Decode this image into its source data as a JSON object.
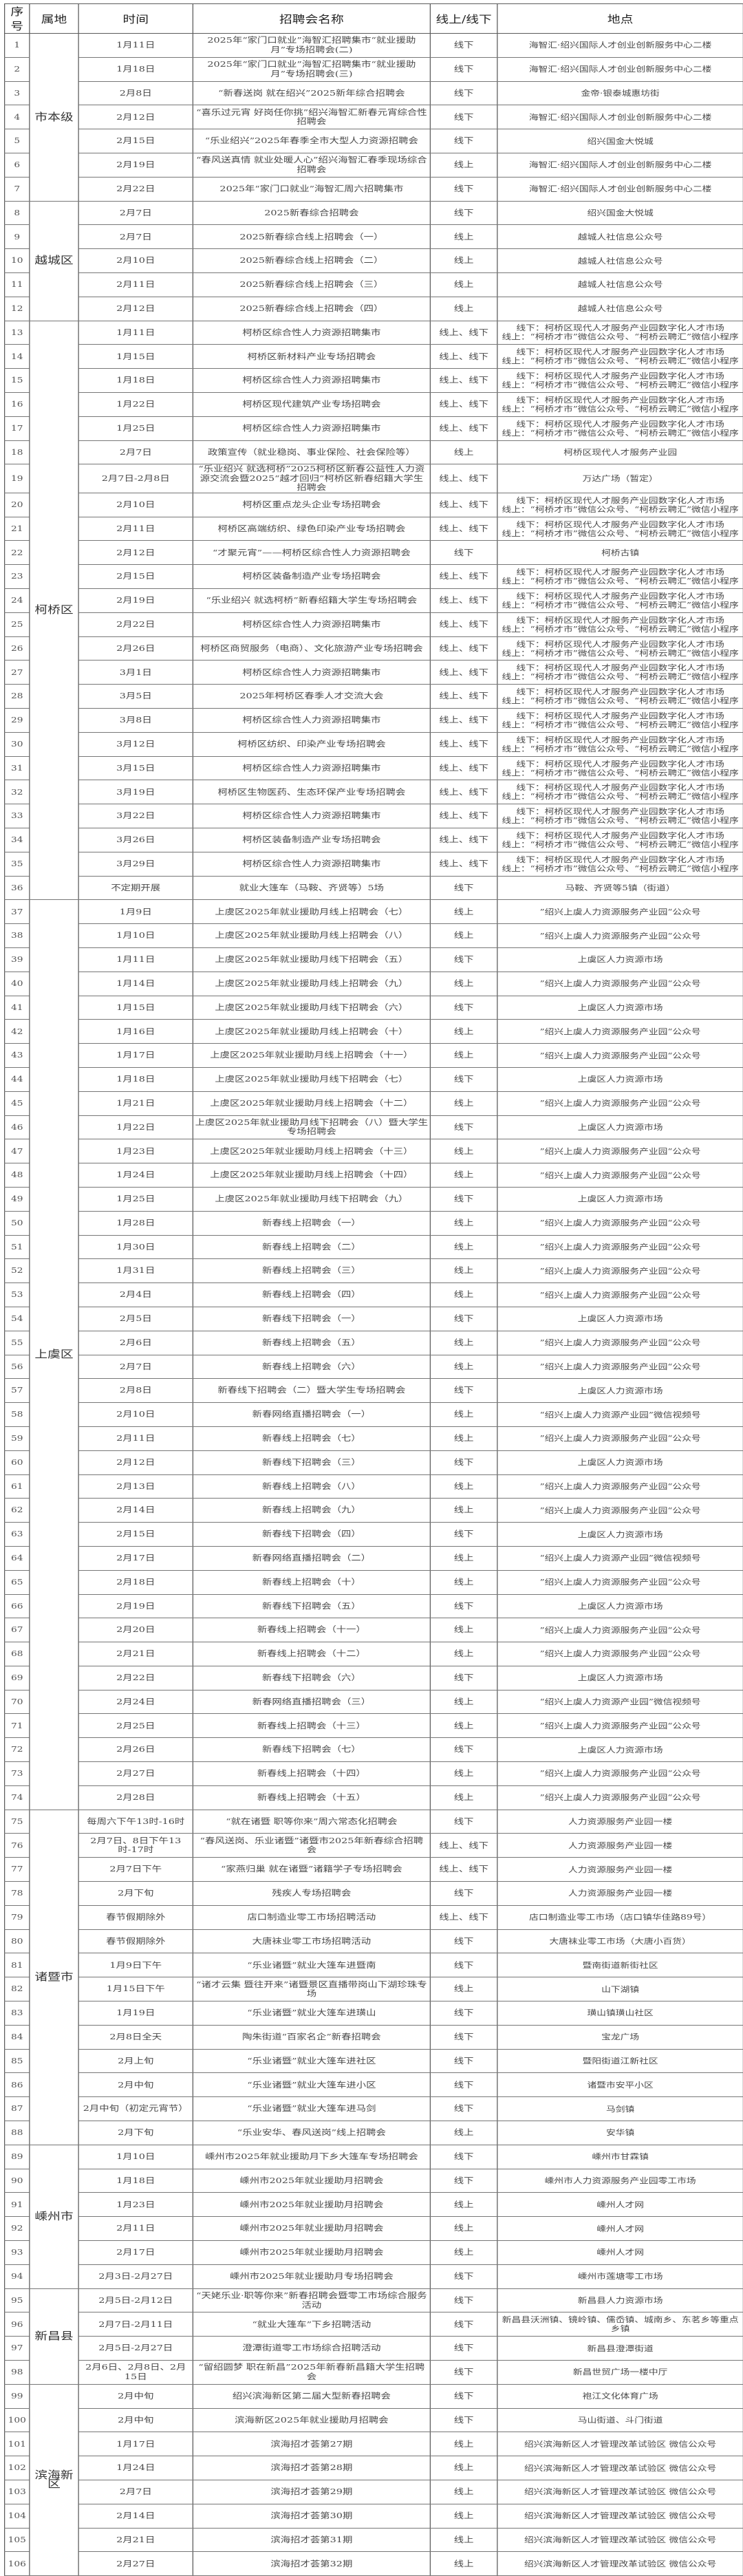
{
  "header": {
    "seq": "序号",
    "region": "属地",
    "time": "时间",
    "name": "招聘会名称",
    "mode": "线上/线下",
    "place": "地点"
  },
  "groups": [
    {
      "region": "市本级",
      "rows": [
        [
          "1",
          "1月11日",
          "2025年“家门口就业”海智汇招聘集市“就业援助月”专场招聘会(二)",
          "线下",
          "海智汇·绍兴国际人才创业创新服务中心二楼"
        ],
        [
          "2",
          "1月18日",
          "2025年“家门口就业”海智汇招聘集市“就业援助月”专场招聘会(三)",
          "线下",
          "海智汇·绍兴国际人才创业创新服务中心二楼"
        ],
        [
          "3",
          "2月8日",
          "“新春送岗 就在绍兴”2025新年综合招聘会",
          "线下",
          "金帝·银泰城惠坊街"
        ],
        [
          "4",
          "2月12日",
          "“喜乐过元宵 好岗任你挑”绍兴海智汇新春元宵综合性招聘会",
          "线下",
          "海智汇·绍兴国际人才创业创新服务中心二楼"
        ],
        [
          "5",
          "2月15日",
          "“乐业绍兴”2025年春季全市大型人力资源招聘会",
          "线下",
          "绍兴国金大悦城"
        ],
        [
          "6",
          "2月19日",
          "“春风送真情 就业处暖人心”绍兴海智汇春季现场综合招聘会",
          "线上",
          "海智汇·绍兴国际人才创业创新服务中心二楼"
        ],
        [
          "7",
          "2月22日",
          "2025年“家门口就业”海智汇周六招聘集市",
          "线下",
          "海智汇·绍兴国际人才创业创新服务中心二楼"
        ]
      ]
    },
    {
      "region": "越城区",
      "rows": [
        [
          "8",
          "2月7日",
          "2025新春综合招聘会",
          "线下",
          "绍兴国金大悦城"
        ],
        [
          "9",
          "2月7日",
          "2025新春综合线上招聘会（一）",
          "线上",
          "越城人社信息公众号"
        ],
        [
          "10",
          "2月10日",
          "2025新春综合线上招聘会（二）",
          "线上",
          "越城人社信息公众号"
        ],
        [
          "11",
          "2月11日",
          "2025新春综合线上招聘会（三）",
          "线上",
          "越城人社信息公众号"
        ],
        [
          "12",
          "2月12日",
          "2025新春综合线上招聘会（四）",
          "线上",
          "越城人社信息公众号"
        ]
      ]
    },
    {
      "region": "柯桥区",
      "rows": [
        [
          "13",
          "1月11日",
          "柯桥区综合性人力资源招聘集市",
          "线上、线下",
          "线下：柯桥区现代人才服务产业园数字化人才市场\n线上：“柯桥才市”微信公众号、“柯桥云聘汇”微信小程序"
        ],
        [
          "14",
          "1月15日",
          "柯桥区新材料产业专场招聘会",
          "线上、线下",
          "线下：柯桥区现代人才服务产业园数字化人才市场\n线上：“柯桥才市”微信公众号、“柯桥云聘汇”微信小程序"
        ],
        [
          "15",
          "1月18日",
          "柯桥区综合性人力资源招聘集市",
          "线上、线下",
          "线下：柯桥区现代人才服务产业园数字化人才市场\n线上：“柯桥才市”微信公众号、“柯桥云聘汇”微信小程序"
        ],
        [
          "16",
          "1月22日",
          "柯桥区现代建筑产业专场招聘会",
          "线上、线下",
          "线下：柯桥区现代人才服务产业园数字化人才市场\n线上：“柯桥才市”微信公众号、“柯桥云聘汇”微信小程序"
        ],
        [
          "17",
          "1月25日",
          "柯桥区综合性人力资源招聘集市",
          "线上、线下",
          "线下：柯桥区现代人才服务产业园数字化人才市场\n线上：“柯桥才市”微信公众号、“柯桥云聘汇”微信小程序"
        ],
        [
          "18",
          "2月7日",
          "政策宣传（就业稳岗、事业保险、社会保险等）",
          "线上",
          "柯桥区现代人才服务产业园"
        ],
        [
          "19",
          "2月7日-2月8日",
          "“乐业绍兴 就选柯桥”2025柯桥区新春公益性人力资源交流会暨2025“越才回归”柯桥区新春绍籍大学生招聘会",
          "线上、线下",
          "万达广场（暂定）"
        ],
        [
          "20",
          "2月10日",
          "柯桥区重点龙头企业专场招聘会",
          "线上、线下",
          "线下：柯桥区现代人才服务产业园数字化人才市场\n线上：“柯桥才市”微信公众号、“柯桥云聘汇”微信小程序"
        ],
        [
          "21",
          "2月11日",
          "柯桥区高端纺织、绿色印染产业专场招聘会",
          "线上、线下",
          "线下：柯桥区现代人才服务产业园数字化人才市场\n线上：“柯桥才市”微信公众号、“柯桥云聘汇”微信小程序"
        ],
        [
          "22",
          "2月12日",
          "“才聚元宵”——柯桥区综合性人力资源招聘会",
          "线下",
          "柯桥古镇"
        ],
        [
          "23",
          "2月15日",
          "柯桥区装备制造产业专场招聘会",
          "线上、线下",
          "线下：柯桥区现代人才服务产业园数字化人才市场\n线上：“柯桥才市”微信公众号、“柯桥云聘汇”微信小程序"
        ],
        [
          "24",
          "2月19日",
          "“乐业绍兴 就选柯桥”新春绍籍大学生专场招聘会",
          "线上、线下",
          "线下：柯桥区现代人才服务产业园数字化人才市场\n线上：“柯桥才市”微信公众号、“柯桥云聘汇”微信小程序"
        ],
        [
          "25",
          "2月22日",
          "柯桥区综合性人力资源招聘集市",
          "线上、线下",
          "线下：柯桥区现代人才服务产业园数字化人才市场\n线上：“柯桥才市”微信公众号、“柯桥云聘汇”微信小程序"
        ],
        [
          "26",
          "2月26日",
          "柯桥区商贸服务（电商）、文化旅游产业专场招聘会",
          "线上、线下",
          "线下：柯桥区现代人才服务产业园数字化人才市场\n线上：“柯桥才市”微信公众号、“柯桥云聘汇”微信小程序"
        ],
        [
          "27",
          "3月1日",
          "柯桥区综合性人力资源招聘集市",
          "线上、线下",
          "线下：柯桥区现代人才服务产业园数字化人才市场\n线上：“柯桥才市”微信公众号、“柯桥云聘汇”微信小程序"
        ],
        [
          "28",
          "3月5日",
          "2025年柯桥区春季人才交流大会",
          "线上、线下",
          "线下：柯桥区现代人才服务产业园数字化人才市场\n线上：“柯桥才市”微信公众号、“柯桥云聘汇”微信小程序"
        ],
        [
          "29",
          "3月8日",
          "柯桥区综合性人力资源招聘集市",
          "线上、线下",
          "线下：柯桥区现代人才服务产业园数字化人才市场\n线上：“柯桥才市”微信公众号、“柯桥云聘汇”微信小程序"
        ],
        [
          "30",
          "3月12日",
          "柯桥区纺织、印染产业专场招聘会",
          "线上、线下",
          "线下：柯桥区现代人才服务产业园数字化人才市场\n线上：“柯桥才市”微信公众号、“柯桥云聘汇”微信小程序"
        ],
        [
          "31",
          "3月15日",
          "柯桥区综合性人力资源招聘集市",
          "线上、线下",
          "线下：柯桥区现代人才服务产业园数字化人才市场\n线上：“柯桥才市”微信公众号、“柯桥云聘汇”微信小程序"
        ],
        [
          "32",
          "3月19日",
          "柯桥区生物医药、生态环保产业专场招聘会",
          "线上、线下",
          "线下：柯桥区现代人才服务产业园数字化人才市场\n线上：“柯桥才市”微信公众号、“柯桥云聘汇”微信小程序"
        ],
        [
          "33",
          "3月22日",
          "柯桥区综合性人力资源招聘集市",
          "线上、线下",
          "线下：柯桥区现代人才服务产业园数字化人才市场\n线上：“柯桥才市”微信公众号、“柯桥云聘汇”微信小程序"
        ],
        [
          "34",
          "3月26日",
          "柯桥区装备制造产业专场招聘会",
          "线上、线下",
          "线下：柯桥区现代人才服务产业园数字化人才市场\n线上：“柯桥才市”微信公众号、“柯桥云聘汇”微信小程序"
        ],
        [
          "35",
          "3月29日",
          "柯桥区综合性人力资源招聘集市",
          "线上、线下",
          "线下：柯桥区现代人才服务产业园数字化人才市场\n线上：“柯桥才市”微信公众号、“柯桥云聘汇”微信小程序"
        ],
        [
          "36",
          "不定期开展",
          "就业大篷车（马鞍、齐贤等）5场",
          "线下",
          "马鞍、齐贤等5镇（街道）"
        ]
      ]
    },
    {
      "region": "上虞区",
      "rows": [
        [
          "37",
          "1月9日",
          "上虞区2025年就业援助月线上招聘会（七）",
          "线上",
          "”绍兴上虞人力资源服务产业园“公众号"
        ],
        [
          "38",
          "1月10日",
          "上虞区2025年就业援助月线上招聘会（八）",
          "线上",
          "”绍兴上虞人力资源服务产业园“公众号"
        ],
        [
          "39",
          "1月11日",
          "上虞区2025年就业援助月线下招聘会（五）",
          "线下",
          "上虞区人力资源市场"
        ],
        [
          "40",
          "1月14日",
          "上虞区2025年就业援助月线上招聘会（九）",
          "线上",
          "”绍兴上虞人力资源服务产业园“公众号"
        ],
        [
          "41",
          "1月15日",
          "上虞区2025年就业援助月线下招聘会（六）",
          "线下",
          "上虞区人力资源市场"
        ],
        [
          "42",
          "1月16日",
          "上虞区2025年就业援助月线上招聘会（十）",
          "线上",
          "”绍兴上虞人力资源服务产业园“公众号"
        ],
        [
          "43",
          "1月17日",
          "上虞区2025年就业援助月线上招聘会（十一）",
          "线上",
          "”绍兴上虞人力资源服务产业园“公众号"
        ],
        [
          "44",
          "1月18日",
          "上虞区2025年就业援助月线下招聘会（七）",
          "线下",
          "上虞区人力资源市场"
        ],
        [
          "45",
          "1月21日",
          "上虞区2025年就业援助月线上招聘会（十二）",
          "线上",
          "”绍兴上虞人力资源服务产业园“公众号"
        ],
        [
          "46",
          "1月22日",
          "上虞区2025年就业援助月线下招聘会（八）暨大学生专场招聘会",
          "线下",
          "上虞区人力资源市场"
        ],
        [
          "47",
          "1月23日",
          "上虞区2025年就业援助月线上招聘会（十三）",
          "线上",
          "”绍兴上虞人力资源服务产业园“公众号"
        ],
        [
          "48",
          "1月24日",
          "上虞区2025年就业援助月线上招聘会（十四）",
          "线上",
          "”绍兴上虞人力资源服务产业园“公众号"
        ],
        [
          "49",
          "1月25日",
          "上虞区2025年就业援助月线下招聘会（九）",
          "线下",
          "上虞区人力资源市场"
        ],
        [
          "50",
          "1月28日",
          "新春线上招聘会（一）",
          "线上",
          "”绍兴上虞人力资源服务产业园“公众号"
        ],
        [
          "51",
          "1月30日",
          "新春线上招聘会（二）",
          "线上",
          "”绍兴上虞人力资源服务产业园“公众号"
        ],
        [
          "52",
          "1月31日",
          "新春线上招聘会（三）",
          "线上",
          "”绍兴上虞人力资源服务产业园“公众号"
        ],
        [
          "53",
          "2月4日",
          "新春线上招聘会（四）",
          "线上",
          "”绍兴上虞人力资源服务产业园“公众号"
        ],
        [
          "54",
          "2月5日",
          "新春线下招聘会（一）",
          "线下",
          "上虞区人力资源市场"
        ],
        [
          "55",
          "2月6日",
          "新春线上招聘会（五）",
          "线上",
          "”绍兴上虞人力资源服务产业园“公众号"
        ],
        [
          "56",
          "2月7日",
          "新春线上招聘会（六）",
          "线上",
          "”绍兴上虞人力资源服务产业园“公众号"
        ],
        [
          "57",
          "2月8日",
          "新春线下招聘会（二）暨大学生专场招聘会",
          "线下",
          "上虞区人力资源市场"
        ],
        [
          "58",
          "2月10日",
          "新春网络直播招聘会（一）",
          "线上",
          "“绍兴上虞人力资源产业园”微信视频号"
        ],
        [
          "59",
          "2月11日",
          "新春线上招聘会（七）",
          "线上",
          "”绍兴上虞人力资源服务产业园“公众号"
        ],
        [
          "60",
          "2月12日",
          "新春线下招聘会（三）",
          "线下",
          "上虞区人力资源市场"
        ],
        [
          "61",
          "2月13日",
          "新春线上招聘会（八）",
          "线上",
          "”绍兴上虞人力资源服务产业园“公众号"
        ],
        [
          "62",
          "2月14日",
          "新春线上招聘会（九）",
          "线上",
          "”绍兴上虞人力资源服务产业园“公众号"
        ],
        [
          "63",
          "2月15日",
          "新春线下招聘会（四）",
          "线下",
          "上虞区人力资源市场"
        ],
        [
          "64",
          "2月17日",
          "新春网络直播招聘会（二）",
          "线上",
          "“绍兴上虞人力资源产业园”微信视频号"
        ],
        [
          "65",
          "2月18日",
          "新春线上招聘会（十）",
          "线上",
          "”绍兴上虞人力资源服务产业园“公众号"
        ],
        [
          "66",
          "2月19日",
          "新春线下招聘会（五）",
          "线下",
          "上虞区人力资源市场"
        ],
        [
          "67",
          "2月20日",
          "新春线上招聘会（十一）",
          "线上",
          "”绍兴上虞人力资源服务产业园“公众号"
        ],
        [
          "68",
          "2月21日",
          "新春线上招聘会（十二）",
          "线上",
          "”绍兴上虞人力资源服务产业园“公众号"
        ],
        [
          "69",
          "2月22日",
          "新春线下招聘会（六）",
          "线下",
          "上虞区人力资源市场"
        ],
        [
          "70",
          "2月24日",
          "新春网络直播招聘会（三）",
          "线上",
          "“绍兴上虞人力资源产业园”微信视频号"
        ],
        [
          "71",
          "2月25日",
          "新春线上招聘会（十三）",
          "线上",
          "”绍兴上虞人力资源服务产业园“公众号"
        ],
        [
          "72",
          "2月26日",
          "新春线下招聘会（七）",
          "线下",
          "上虞区人力资源市场"
        ],
        [
          "73",
          "2月27日",
          "新春线上招聘会（十四）",
          "线上",
          "”绍兴上虞人力资源服务产业园“公众号"
        ],
        [
          "74",
          "2月28日",
          "新春线上招聘会（十五）",
          "线上",
          "”绍兴上虞人力资源服务产业园“公众号"
        ]
      ]
    },
    {
      "region": "诸暨市",
      "rows": [
        [
          "75",
          "每周六下午13时-16时",
          "“就在诸暨 职等你来”周六常态化招聘会",
          "线下",
          "人力资源服务产业园一楼"
        ],
        [
          "76",
          "2月7日、8日下午13时-17时",
          "“春风送岗、乐业诸暨”诸暨市2025年新春综合招聘会",
          "线上、线下",
          "人力资源服务产业园一楼"
        ],
        [
          "77",
          "2月7日下午",
          "“家燕归巢 就在诸暨”诸籍学子专场招聘会",
          "线上、线下",
          "人力资源服务产业园一楼"
        ],
        [
          "78",
          "2月下旬",
          "残疾人专场招聘会",
          "线下",
          "人力资源服务产业园一楼"
        ],
        [
          "79",
          "春节假期除外",
          "店口制造业零工市场招聘活动",
          "线上、线下",
          "店口制造业零工市场（店口镇华佳路89号）"
        ],
        [
          "80",
          "春节假期除外",
          "大唐袜业零工市场招聘活动",
          "线下",
          "大唐袜业零工市场（大唐小百货）"
        ],
        [
          "81",
          "1月9日下午",
          "“乐业诸暨”就业大篷车进暨南",
          "线下",
          "暨南街道新街社区"
        ],
        [
          "82",
          "1月15日下午",
          "“诸才云集 暨往开来”诸暨景区直播带岗山下湖珍珠专场",
          "线上",
          "山下湖镇"
        ],
        [
          "83",
          "1月19日",
          "“乐业诸暨”就业大篷车进璜山",
          "线下",
          "璜山镇璜山社区"
        ],
        [
          "84",
          "2月8日全天",
          "陶朱街道“百家名企”新春招聘会",
          "线下",
          "宝龙广场"
        ],
        [
          "85",
          "2月上旬",
          "“乐业诸暨”就业大篷车进社区",
          "线下",
          "暨阳街道江新社区"
        ],
        [
          "86",
          "2月中旬",
          "“乐业诸暨”就业大篷车进小区",
          "线下",
          "诸暨市安平小区"
        ],
        [
          "87",
          "2月中旬（初定元宵节）",
          "“乐业诸暨”就业大篷车进马剑",
          "线下",
          "马剑镇"
        ],
        [
          "88",
          "2月下旬",
          "“乐业安华、春风送岗”线上招聘会",
          "线上",
          "安华镇"
        ]
      ]
    },
    {
      "region": "嵊州市",
      "rows": [
        [
          "89",
          "1月10日",
          "嵊州市2025年就业援助月下乡大篷车专场招聘会",
          "线下",
          "嵊州市甘霖镇"
        ],
        [
          "90",
          "1月18日",
          "嵊州市2025年就业援助月招聘会",
          "线下",
          "嵊州市人力资源服务产业园零工市场"
        ],
        [
          "91",
          "1月23日",
          "嵊州市2025年就业援助月招聘会",
          "线上",
          "嵊州人才网"
        ],
        [
          "92",
          "2月11日",
          "嵊州市2025年就业援助月招聘会",
          "线上",
          "嵊州人才网"
        ],
        [
          "93",
          "2月17日",
          "嵊州市2025年就业援助月招聘会",
          "线上",
          "嵊州人才网"
        ],
        [
          "94",
          "2月3日-2月27日",
          "嵊州市2025年就业援助月专场招聘会",
          "线下",
          "嵊州市莲塘零工市场"
        ]
      ]
    },
    {
      "region": "新昌县",
      "rows": [
        [
          "95",
          "2月5日-2月12日",
          "“天姥乐业·职等你来”新春招聘会暨零工市场综合服务活动",
          "线下",
          "新昌县人力资源市场"
        ],
        [
          "96",
          "2月7日-2月11日",
          "“就业大篷车”下乡招聘活动",
          "线下",
          "新昌县沃洲镇、镜岭镇、儒岙镇、城南乡、东茗乡等重点乡镇"
        ],
        [
          "97",
          "2月5日-2月27日",
          "澄潭街道零工市场综合招聘活动",
          "线下",
          "新昌县澄潭街道"
        ],
        [
          "98",
          "2月6日、2月8日、2月15日",
          "“留绍圆梦 职在新昌”2025年新春新昌籍大学生招聘会",
          "线下",
          "新昌世贸广场一楼中厅"
        ]
      ]
    },
    {
      "region": "滨海新区",
      "rows": [
        [
          "99",
          "2月中旬",
          "绍兴滨海新区第二届大型新春招聘会",
          "线下",
          "袍江文化体育广场"
        ],
        [
          "100",
          "2月中旬",
          "滨海新区2025年就业援助月招聘会",
          "线下",
          "马山街道、斗门街道"
        ],
        [
          "101",
          "1月17日",
          "滨海招才荟第27期",
          "线上",
          "绍兴滨海新区人才管理改革试验区 微信公众号"
        ],
        [
          "102",
          "1月24日",
          "滨海招才荟第28期",
          "线上",
          "绍兴滨海新区人才管理改革试验区 微信公众号"
        ],
        [
          "103",
          "2月7日",
          "滨海招才荟第29期",
          "线上",
          "绍兴滨海新区人才管理改革试验区 微信公众号"
        ],
        [
          "104",
          "2月14日",
          "滨海招才荟第30期",
          "线上",
          "绍兴滨海新区人才管理改革试验区 微信公众号"
        ],
        [
          "105",
          "2月21日",
          "滨海招才荟第31期",
          "线上",
          "绍兴滨海新区人才管理改革试验区 微信公众号"
        ],
        [
          "106",
          "2月27日",
          "滨海招才荟第32期",
          "线上",
          "绍兴滨海新区人才管理改革试验区 微信公众号"
        ]
      ]
    }
  ]
}
